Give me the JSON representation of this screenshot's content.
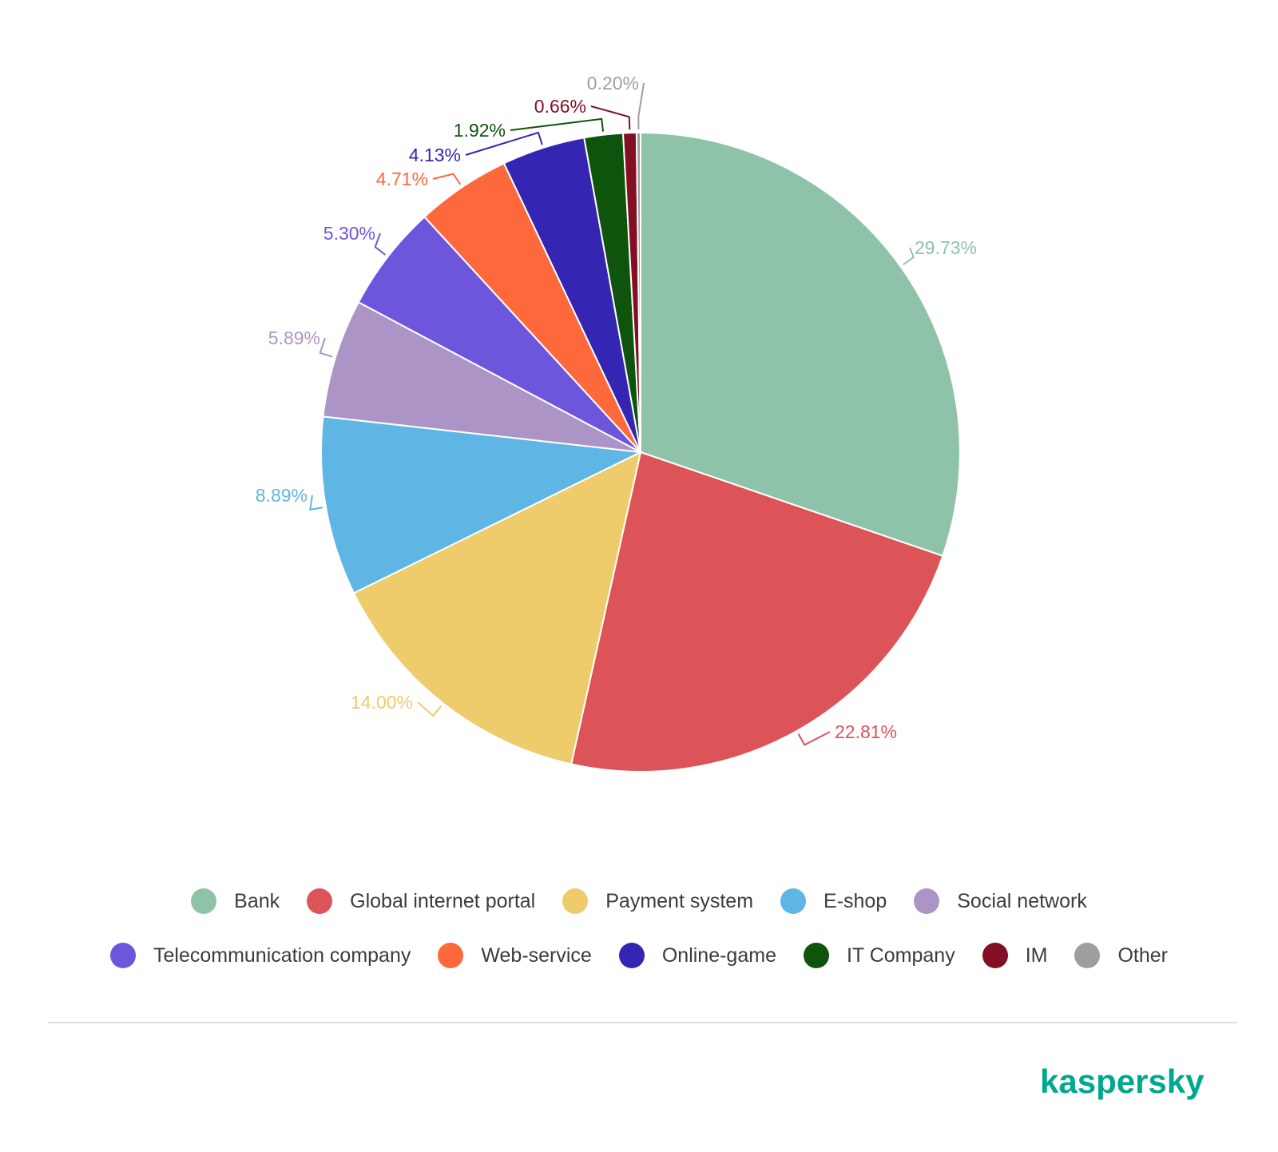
{
  "chart_data": {
    "type": "pie",
    "slices": [
      {
        "name": "Bank",
        "value": 29.73,
        "label": "29.73%",
        "color": "#8fc3a9"
      },
      {
        "name": "Global internet portal",
        "value": 22.81,
        "label": "22.81%",
        "color": "#dc5458"
      },
      {
        "name": "Payment system",
        "value": 14.0,
        "label": "14.00%",
        "color": "#eecb6b"
      },
      {
        "name": "E-shop",
        "value": 8.89,
        "label": "8.89%",
        "color": "#5fb6e4"
      },
      {
        "name": "Social network",
        "value": 5.89,
        "label": "5.89%",
        "color": "#ac94c7"
      },
      {
        "name": "Telecommunication company",
        "value": 5.3,
        "label": "5.30%",
        "color": "#6e56dc"
      },
      {
        "name": "Web-service",
        "value": 4.71,
        "label": "4.71%",
        "color": "#fe693c"
      },
      {
        "name": "Online-game",
        "value": 4.13,
        "label": "4.13%",
        "color": "#3426b3"
      },
      {
        "name": "IT Company",
        "value": 1.92,
        "label": "1.92%",
        "color": "#0e540d"
      },
      {
        "name": "IM",
        "value": 0.66,
        "label": "0.66%",
        "color": "#820f23"
      },
      {
        "name": "Other",
        "value": 0.2,
        "label": "0.20%",
        "color": "#9e9e9e"
      }
    ],
    "legend_position": "bottom"
  },
  "legend": {
    "row1": [
      {
        "label": "Bank",
        "color": "#8fc3a9"
      },
      {
        "label": "Global internet portal",
        "color": "#dc5458"
      },
      {
        "label": "Payment system",
        "color": "#eecb6b"
      },
      {
        "label": "E-shop",
        "color": "#5fb6e4"
      },
      {
        "label": "Social network",
        "color": "#ac94c7"
      }
    ],
    "row2": [
      {
        "label": "Telecommunication company",
        "color": "#6e56dc"
      },
      {
        "label": "Web-service",
        "color": "#fe693c"
      },
      {
        "label": "Online-game",
        "color": "#3426b3"
      },
      {
        "label": "IT Company",
        "color": "#0e540d"
      },
      {
        "label": "IM",
        "color": "#820f23"
      },
      {
        "label": "Other",
        "color": "#9e9e9e"
      }
    ]
  },
  "brand": {
    "logo_text": "kaspersky",
    "color": "#00a88e"
  }
}
